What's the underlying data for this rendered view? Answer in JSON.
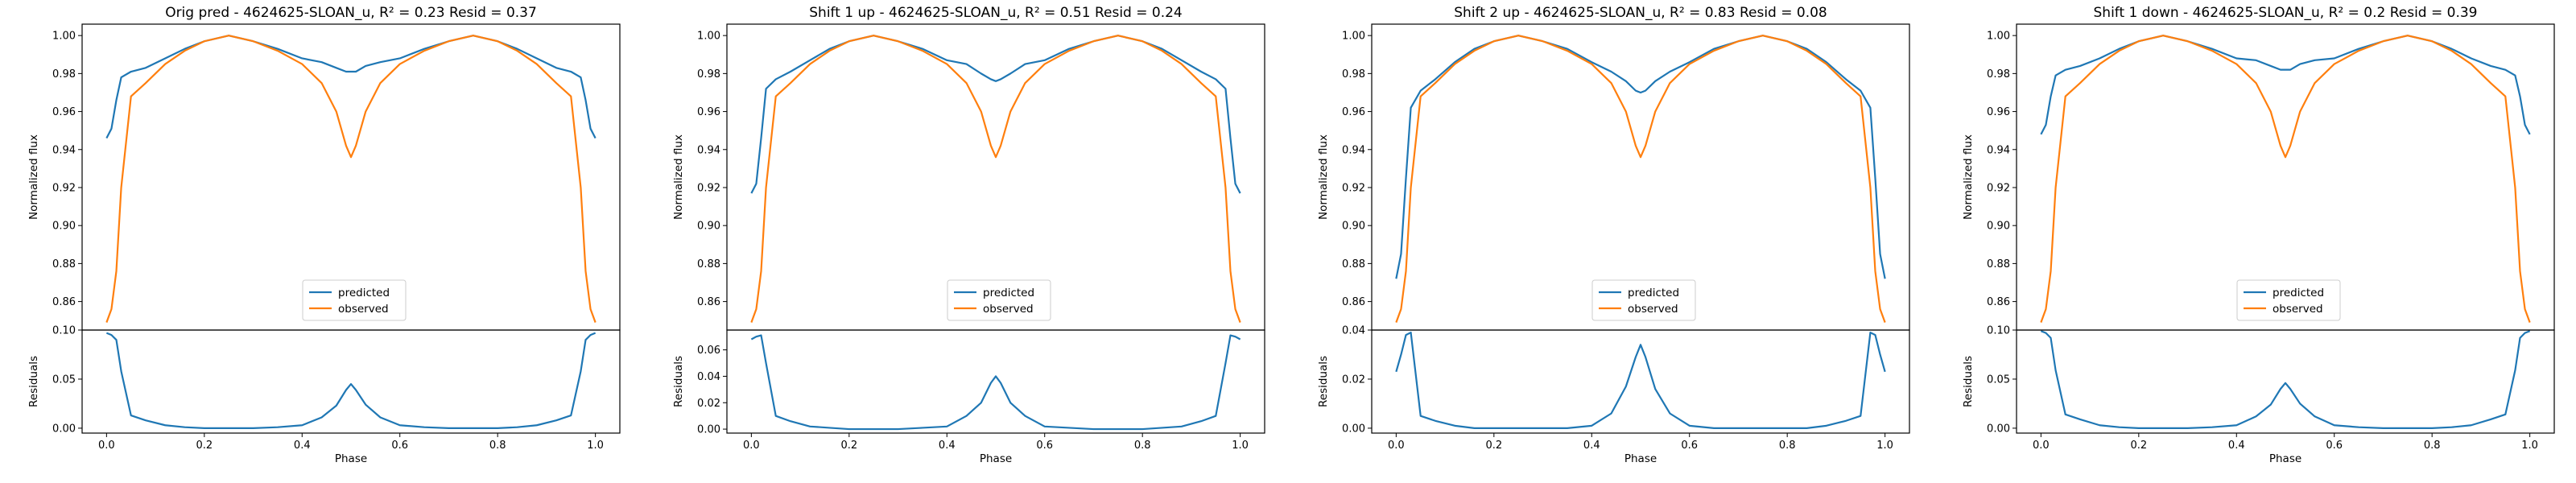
{
  "colors": {
    "predicted": "#1f77b4",
    "observed": "#ff7f0e"
  },
  "legend": {
    "placement": "lower center",
    "entries": [
      "predicted",
      "observed"
    ]
  },
  "chart_data": [
    {
      "type": "line",
      "panel": "orig",
      "title": "Orig pred - 4624625-SLOAN_u, R² = 0.23 Resid = 0.37",
      "xlabel": "Phase",
      "ylabel_top": "Normalized flux",
      "ylabel_bottom": "Residuals",
      "xlim": [
        -0.05,
        1.05
      ],
      "ylim_top": [
        0.845,
        1.006
      ],
      "ylim_bottom": [
        -0.005,
        0.1
      ],
      "xticks": [
        "0.0",
        "0.2",
        "0.4",
        "0.6",
        "0.8",
        "1.0"
      ],
      "yticks_top": [
        "0.86",
        "0.88",
        "0.90",
        "0.92",
        "0.94",
        "0.96",
        "0.98",
        "1.00"
      ],
      "yticks_bottom": [
        "0.00",
        "0.05",
        "0.10"
      ],
      "x": [
        0,
        0.01,
        0.02,
        0.03,
        0.05,
        0.08,
        0.12,
        0.16,
        0.2,
        0.25,
        0.3,
        0.35,
        0.4,
        0.44,
        0.47,
        0.49,
        0.5,
        0.51,
        0.53,
        0.56,
        0.6,
        0.65,
        0.7,
        0.75,
        0.8,
        0.84,
        0.88,
        0.92,
        0.95,
        0.97,
        0.98,
        0.99,
        1.0
      ],
      "series": [
        {
          "name": "predicted",
          "values": [
            0.946,
            0.951,
            0.966,
            0.978,
            0.981,
            0.983,
            0.988,
            0.993,
            0.997,
            1.0,
            0.997,
            0.993,
            0.988,
            0.986,
            0.983,
            0.981,
            0.981,
            0.981,
            0.984,
            0.986,
            0.988,
            0.993,
            0.997,
            1.0,
            0.997,
            0.993,
            0.988,
            0.983,
            0.981,
            0.978,
            0.966,
            0.951,
            0.946
          ]
        },
        {
          "name": "observed",
          "values": [
            0.849,
            0.856,
            0.876,
            0.92,
            0.968,
            0.975,
            0.985,
            0.992,
            0.997,
            1.0,
            0.997,
            0.992,
            0.985,
            0.975,
            0.96,
            0.942,
            0.936,
            0.942,
            0.96,
            0.975,
            0.985,
            0.992,
            0.997,
            1.0,
            0.997,
            0.992,
            0.985,
            0.975,
            0.968,
            0.92,
            0.876,
            0.856,
            0.849
          ]
        }
      ],
      "residuals": [
        0.097,
        0.095,
        0.09,
        0.058,
        0.013,
        0.008,
        0.003,
        0.001,
        0.0,
        0.0,
        0.0,
        0.001,
        0.003,
        0.011,
        0.023,
        0.039,
        0.045,
        0.039,
        0.024,
        0.011,
        0.003,
        0.001,
        0.0,
        0.0,
        0.0,
        0.001,
        0.003,
        0.008,
        0.013,
        0.058,
        0.09,
        0.095,
        0.097
      ]
    },
    {
      "type": "line",
      "panel": "shift1up",
      "title": "Shift 1 up - 4624625-SLOAN_u, R² = 0.51 Resid = 0.24",
      "xlabel": "Phase",
      "ylabel_top": "Normalized flux",
      "ylabel_bottom": "Residuals",
      "xlim": [
        -0.05,
        1.05
      ],
      "ylim_top": [
        0.845,
        1.006
      ],
      "ylim_bottom": [
        -0.003,
        0.075
      ],
      "xticks": [
        "0.0",
        "0.2",
        "0.4",
        "0.6",
        "0.8",
        "1.0"
      ],
      "yticks_top": [
        "0.86",
        "0.88",
        "0.90",
        "0.92",
        "0.94",
        "0.96",
        "0.98",
        "1.00"
      ],
      "yticks_bottom": [
        "0.00",
        "0.02",
        "0.04",
        "0.06"
      ],
      "x": [
        0,
        0.01,
        0.02,
        0.03,
        0.05,
        0.08,
        0.12,
        0.16,
        0.2,
        0.25,
        0.3,
        0.35,
        0.4,
        0.44,
        0.47,
        0.49,
        0.5,
        0.51,
        0.53,
        0.56,
        0.6,
        0.65,
        0.7,
        0.75,
        0.8,
        0.84,
        0.88,
        0.92,
        0.95,
        0.97,
        0.98,
        0.99,
        1.0
      ],
      "series": [
        {
          "name": "predicted",
          "values": [
            0.917,
            0.922,
            0.946,
            0.972,
            0.977,
            0.981,
            0.987,
            0.993,
            0.997,
            1.0,
            0.997,
            0.993,
            0.987,
            0.985,
            0.98,
            0.977,
            0.976,
            0.977,
            0.98,
            0.985,
            0.987,
            0.993,
            0.997,
            1.0,
            0.997,
            0.993,
            0.987,
            0.981,
            0.977,
            0.972,
            0.946,
            0.922,
            0.917
          ]
        },
        {
          "name": "observed",
          "values": [
            0.849,
            0.856,
            0.876,
            0.92,
            0.968,
            0.975,
            0.985,
            0.992,
            0.997,
            1.0,
            0.997,
            0.992,
            0.985,
            0.975,
            0.96,
            0.942,
            0.936,
            0.942,
            0.96,
            0.975,
            0.985,
            0.992,
            0.997,
            1.0,
            0.997,
            0.992,
            0.985,
            0.975,
            0.968,
            0.92,
            0.876,
            0.856,
            0.849
          ]
        }
      ],
      "residuals": [
        0.068,
        0.07,
        0.071,
        0.05,
        0.01,
        0.006,
        0.002,
        0.001,
        0.0,
        0.0,
        0.0,
        0.001,
        0.002,
        0.01,
        0.02,
        0.035,
        0.04,
        0.035,
        0.02,
        0.01,
        0.002,
        0.001,
        0.0,
        0.0,
        0.0,
        0.001,
        0.002,
        0.006,
        0.01,
        0.05,
        0.071,
        0.07,
        0.068
      ]
    },
    {
      "type": "line",
      "panel": "shift2up",
      "title": "Shift 2 up - 4624625-SLOAN_u, R² = 0.83 Resid = 0.08",
      "xlabel": "Phase",
      "ylabel_top": "Normalized flux",
      "ylabel_bottom": "Residuals",
      "xlim": [
        -0.05,
        1.05
      ],
      "ylim_top": [
        0.845,
        1.006
      ],
      "ylim_bottom": [
        -0.002,
        0.04
      ],
      "xticks": [
        "0.0",
        "0.2",
        "0.4",
        "0.6",
        "0.8",
        "1.0"
      ],
      "yticks_top": [
        "0.86",
        "0.88",
        "0.90",
        "0.92",
        "0.94",
        "0.96",
        "0.98",
        "1.00"
      ],
      "yticks_bottom": [
        "0.00",
        "0.02",
        "0.04"
      ],
      "x": [
        0,
        0.01,
        0.02,
        0.03,
        0.05,
        0.08,
        0.12,
        0.16,
        0.2,
        0.25,
        0.3,
        0.35,
        0.4,
        0.44,
        0.47,
        0.49,
        0.5,
        0.51,
        0.53,
        0.56,
        0.6,
        0.65,
        0.7,
        0.75,
        0.8,
        0.84,
        0.88,
        0.92,
        0.95,
        0.97,
        0.98,
        0.99,
        1.0
      ],
      "series": [
        {
          "name": "predicted",
          "values": [
            0.872,
            0.885,
            0.925,
            0.962,
            0.971,
            0.977,
            0.986,
            0.993,
            0.997,
            1.0,
            0.997,
            0.993,
            0.986,
            0.981,
            0.976,
            0.971,
            0.97,
            0.971,
            0.976,
            0.981,
            0.986,
            0.993,
            0.997,
            1.0,
            0.997,
            0.993,
            0.986,
            0.977,
            0.971,
            0.962,
            0.925,
            0.885,
            0.872
          ]
        },
        {
          "name": "observed",
          "values": [
            0.849,
            0.856,
            0.876,
            0.92,
            0.968,
            0.975,
            0.985,
            0.992,
            0.997,
            1.0,
            0.997,
            0.992,
            0.985,
            0.975,
            0.96,
            0.942,
            0.936,
            0.942,
            0.96,
            0.975,
            0.985,
            0.992,
            0.997,
            1.0,
            0.997,
            0.992,
            0.985,
            0.975,
            0.968,
            0.92,
            0.876,
            0.856,
            0.849
          ]
        }
      ],
      "residuals": [
        0.023,
        0.03,
        0.038,
        0.039,
        0.005,
        0.003,
        0.001,
        0.0,
        0.0,
        0.0,
        0.0,
        0.0,
        0.001,
        0.006,
        0.017,
        0.029,
        0.034,
        0.029,
        0.016,
        0.006,
        0.001,
        0.0,
        0.0,
        0.0,
        0.0,
        0.0,
        0.001,
        0.003,
        0.005,
        0.039,
        0.038,
        0.03,
        0.023
      ]
    },
    {
      "type": "line",
      "panel": "shift1down",
      "title": "Shift 1 down - 4624625-SLOAN_u, R² = 0.2 Resid = 0.39",
      "xlabel": "Phase",
      "ylabel_top": "Normalized flux",
      "ylabel_bottom": "Residuals",
      "xlim": [
        -0.05,
        1.05
      ],
      "ylim_top": [
        0.845,
        1.006
      ],
      "ylim_bottom": [
        -0.005,
        0.1
      ],
      "xticks": [
        "0.0",
        "0.2",
        "0.4",
        "0.6",
        "0.8",
        "1.0"
      ],
      "yticks_top": [
        "0.86",
        "0.88",
        "0.90",
        "0.92",
        "0.94",
        "0.96",
        "0.98",
        "1.00"
      ],
      "yticks_bottom": [
        "0.00",
        "0.05",
        "0.10"
      ],
      "x": [
        0,
        0.01,
        0.02,
        0.03,
        0.05,
        0.08,
        0.12,
        0.16,
        0.2,
        0.25,
        0.3,
        0.35,
        0.4,
        0.44,
        0.47,
        0.49,
        0.5,
        0.51,
        0.53,
        0.56,
        0.6,
        0.65,
        0.7,
        0.75,
        0.8,
        0.84,
        0.88,
        0.92,
        0.95,
        0.97,
        0.98,
        0.99,
        1.0
      ],
      "series": [
        {
          "name": "predicted",
          "values": [
            0.948,
            0.953,
            0.968,
            0.979,
            0.982,
            0.984,
            0.988,
            0.993,
            0.997,
            1.0,
            0.997,
            0.993,
            0.988,
            0.987,
            0.984,
            0.982,
            0.982,
            0.982,
            0.985,
            0.987,
            0.988,
            0.993,
            0.997,
            1.0,
            0.997,
            0.993,
            0.988,
            0.984,
            0.982,
            0.979,
            0.968,
            0.953,
            0.948
          ]
        },
        {
          "name": "observed",
          "values": [
            0.849,
            0.856,
            0.876,
            0.92,
            0.968,
            0.975,
            0.985,
            0.992,
            0.997,
            1.0,
            0.997,
            0.992,
            0.985,
            0.975,
            0.96,
            0.942,
            0.936,
            0.942,
            0.96,
            0.975,
            0.985,
            0.992,
            0.997,
            1.0,
            0.997,
            0.992,
            0.985,
            0.975,
            0.968,
            0.92,
            0.876,
            0.856,
            0.849
          ]
        }
      ],
      "residuals": [
        0.099,
        0.097,
        0.092,
        0.059,
        0.014,
        0.009,
        0.003,
        0.001,
        0.0,
        0.0,
        0.0,
        0.001,
        0.003,
        0.012,
        0.024,
        0.04,
        0.046,
        0.04,
        0.025,
        0.012,
        0.003,
        0.001,
        0.0,
        0.0,
        0.0,
        0.001,
        0.003,
        0.009,
        0.014,
        0.059,
        0.092,
        0.097,
        0.099
      ]
    }
  ]
}
